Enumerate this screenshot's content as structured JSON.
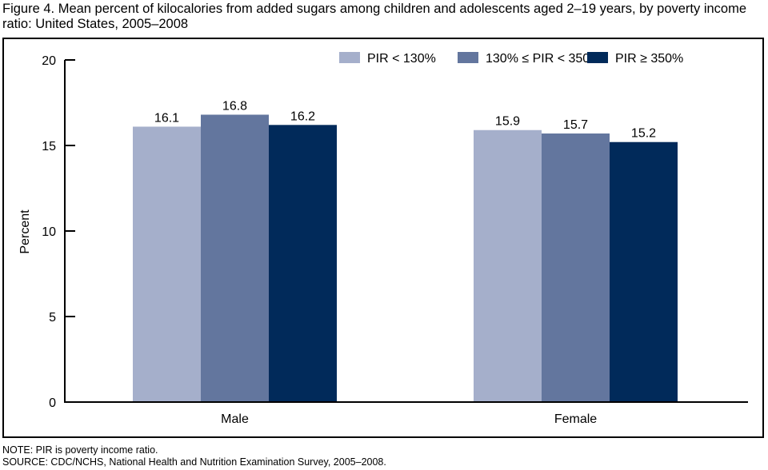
{
  "figure": {
    "title": "Figure 4. Mean percent of kilocalories from added sugars among children and adolescents aged 2–19 years, by poverty income ratio: United States, 2005–2008",
    "note": "NOTE: PIR is poverty income ratio.",
    "source": "SOURCE: CDC/NCHS, National Health and Nutrition Examination Survey, 2005–2008."
  },
  "chart_data": {
    "type": "bar",
    "title": "Mean percent of kilocalories from added sugars among children and adolescents aged 2–19 years, by poverty income ratio: United States, 2005–2008",
    "xlabel": "",
    "ylabel": "Percent",
    "ylim": [
      0,
      20
    ],
    "yticks": [
      0,
      5,
      10,
      15,
      20
    ],
    "grid": false,
    "legend_position": "top-right",
    "categories": [
      "Male",
      "Female"
    ],
    "series": [
      {
        "name": "PIR < 130%",
        "color": "#a5afcb",
        "values": [
          16.1,
          15.9
        ],
        "labels": [
          "16.1",
          "15.9"
        ]
      },
      {
        "name": "130% ≤ PIR < 350%",
        "color": "#63769e",
        "values": [
          16.8,
          15.7
        ],
        "labels": [
          "16.8",
          "15.7"
        ]
      },
      {
        "name": "PIR ≥ 350%",
        "color": "#012a5a",
        "values": [
          16.2,
          15.2
        ],
        "labels": [
          "16.2",
          "15.2"
        ]
      }
    ]
  }
}
